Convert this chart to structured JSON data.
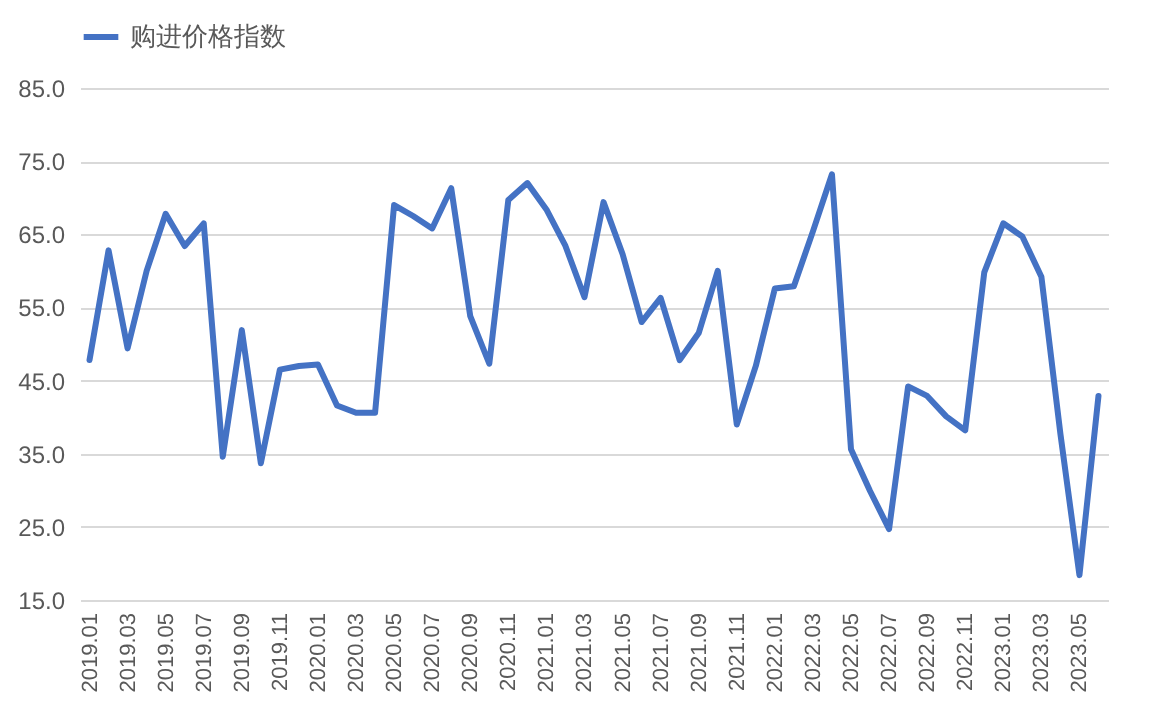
{
  "chart_data": {
    "type": "line",
    "categories": [
      "2019.01",
      null,
      "2019.03",
      null,
      "2019.05",
      null,
      "2019.07",
      null,
      "2019.09",
      null,
      "2019.11",
      null,
      "2020.01",
      null,
      "2020.03",
      null,
      "2020.05",
      null,
      "2020.07",
      null,
      "2020.09",
      null,
      "2020.11",
      null,
      "2021.01",
      null,
      "2021.03",
      null,
      "2021.05",
      null,
      "2021.07",
      null,
      "2021.09",
      null,
      "2021.11",
      null,
      "2022.01",
      null,
      "2022.03",
      null,
      "2022.05",
      null,
      "2022.07",
      null,
      "2022.09",
      null,
      "2022.11",
      null,
      "2023.01",
      null,
      "2023.03",
      null,
      "2023.05",
      null
    ],
    "series": [
      {
        "name": "购进价格指数",
        "color": "#4472c4",
        "values": [
          47.8,
          62.8,
          49.4,
          60.0,
          67.8,
          63.4,
          66.5,
          34.6,
          51.9,
          33.7,
          46.5,
          47.0,
          47.2,
          41.6,
          40.6,
          40.6,
          69.0,
          67.5,
          65.8,
          71.3,
          53.8,
          47.3,
          69.7,
          72.0,
          68.4,
          63.4,
          56.4,
          69.4,
          62.3,
          53.0,
          56.3,
          47.8,
          51.5,
          60.0,
          39.0,
          47.0,
          57.6,
          57.9,
          65.4,
          73.2,
          35.6,
          29.9,
          24.7,
          44.2,
          42.9,
          40.1,
          38.2,
          59.8,
          66.5,
          64.7,
          59.2,
          37.7,
          18.4,
          42.9
        ]
      }
    ],
    "ylim": [
      15,
      85
    ],
    "yticks": [
      {
        "value": 15,
        "label": "15.0"
      },
      {
        "value": 25,
        "label": "25.0"
      },
      {
        "value": 35,
        "label": "35.0"
      },
      {
        "value": 45,
        "label": "45.0"
      },
      {
        "value": 55,
        "label": "55.0"
      },
      {
        "value": 65,
        "label": "65.0"
      },
      {
        "value": 75,
        "label": "75.0"
      },
      {
        "value": 85,
        "label": "85.0"
      }
    ],
    "grid": "y",
    "legend": "top",
    "marker": "none",
    "line_style": "solid"
  }
}
